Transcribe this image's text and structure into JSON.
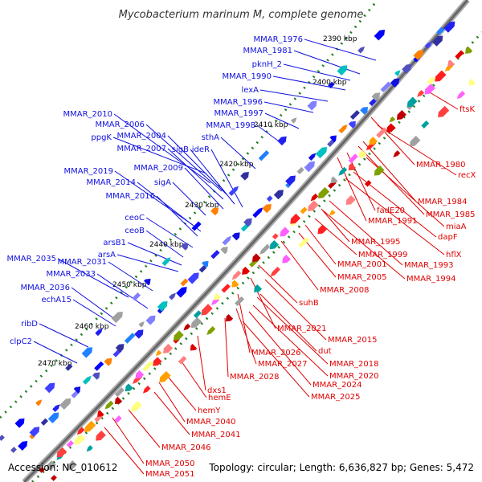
{
  "title": "Mycobacterium marinum M, complete genome",
  "footer": {
    "accession": "Accession: NC_010612",
    "summary": "Topology: circular; Length: 6,636,827 bp; Genes: 5,472"
  },
  "colors": {
    "forward": "#1010e0",
    "reverse": "#e00000",
    "backbone": "#808080",
    "tick": "#208020"
  },
  "ticks": [
    "2390 kbp",
    "2400 kbp",
    "2410 kbp",
    "2420 kbp",
    "2430 kbp",
    "2440 kbp",
    "2450 kbp",
    "2460 kbp",
    "2470 kbp"
  ],
  "forward_genes": [
    "MMAR_1976",
    "MMAR_1981",
    "pknH_2",
    "MMAR_1990",
    "lexA",
    "MMAR_1996",
    "MMAR_1997",
    "MMAR_1998",
    "MMAR_2010",
    "MMAR_2006",
    "MMAR_2004",
    "ppgK",
    "MMAR_2007",
    "sigB",
    "ideR",
    "sthA",
    "MMAR_2009",
    "MMAR_2019",
    "MMAR_2014",
    "sigA",
    "MMAR_2016",
    "ceoC",
    "ceoB",
    "arsB1",
    "arsA",
    "MMAR_2035",
    "MMAR_2031",
    "MMAR_2033",
    "MMAR_2036",
    "echA15",
    "ribD",
    "clpC2"
  ],
  "reverse_genes": [
    "ftsK",
    "MMAR_1980",
    "recX",
    "MMAR_1984",
    "MMAR_1985",
    "fadE20",
    "miaA",
    "MMAR_1991",
    "dapF",
    "hflX",
    "MMAR_1995",
    "MMAR_1999",
    "MMAR_1993",
    "MMAR_2001",
    "MMAR_1994",
    "MMAR_2005",
    "MMAR_2008",
    "suhB",
    "MMAR_2021",
    "MMAR_2015",
    "dut",
    "MMAR_2026",
    "MMAR_2018",
    "MMAR_2027",
    "MMAR_2020",
    "MMAR_2024",
    "MMAR_2028",
    "MMAR_2025",
    "dxs1",
    "hemE",
    "hemY",
    "MMAR_2040",
    "MMAR_2041",
    "MMAR_2046",
    "MMAR_2050",
    "MMAR_2051"
  ]
}
